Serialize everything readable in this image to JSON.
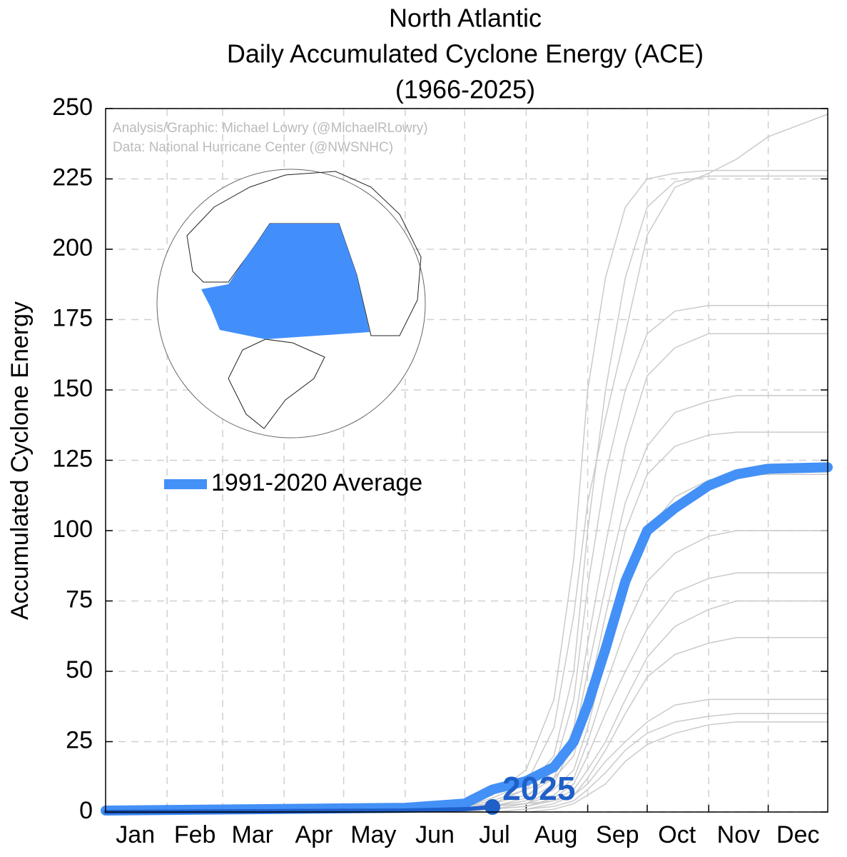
{
  "chart_data": {
    "type": "line",
    "title": [
      "North Atlantic",
      "Daily Accumulated Cyclone Energy (ACE)",
      "(1966-2025)"
    ],
    "ylabel": "Accumulated Cyclone Energy",
    "credits": [
      "Analysis/Graphic: Michael Lowry (@MichaelRLowry)",
      "Data: National Hurricane Center (@NWSNHC)"
    ],
    "x": [
      1,
      152,
      182,
      196,
      213,
      227,
      237,
      244,
      253,
      263,
      274,
      288,
      305,
      319,
      335,
      365
    ],
    "xlim": [
      1,
      365
    ],
    "xgrid": [
      32,
      60,
      91,
      121,
      152,
      182,
      213,
      244,
      274,
      305,
      335
    ],
    "xticks": [
      {
        "value": 16,
        "label": "Jan"
      },
      {
        "value": 46,
        "label": "Feb"
      },
      {
        "value": 75,
        "label": "Mar"
      },
      {
        "value": 106,
        "label": "Apr"
      },
      {
        "value": 136,
        "label": "May"
      },
      {
        "value": 167,
        "label": "Jun"
      },
      {
        "value": 197,
        "label": "Jul"
      },
      {
        "value": 228,
        "label": "Aug"
      },
      {
        "value": 259,
        "label": "Sep"
      },
      {
        "value": 289,
        "label": "Oct"
      },
      {
        "value": 320,
        "label": "Nov"
      },
      {
        "value": 350,
        "label": "Dec"
      }
    ],
    "ylim": [
      0,
      250
    ],
    "yticks": [
      0,
      25,
      50,
      75,
      100,
      125,
      150,
      175,
      200,
      225,
      250
    ],
    "grid": true,
    "legend": "upper left",
    "series": [
      {
        "color": "#cacaca",
        "values": [
          0,
          0,
          2,
          5,
          10,
          30,
          70,
          110,
          140,
          170,
          205,
          222,
          227,
          232,
          240,
          248
        ]
      },
      {
        "color": "#cacaca",
        "values": [
          0,
          1,
          3,
          6,
          15,
          40,
          90,
          150,
          190,
          215,
          225,
          227,
          228,
          228,
          228,
          228
        ]
      },
      {
        "color": "#cacaca",
        "values": [
          0,
          0,
          1,
          3,
          8,
          20,
          50,
          100,
          150,
          190,
          215,
          224,
          226,
          226,
          226,
          226
        ]
      },
      {
        "color": "#cacaca",
        "values": [
          0,
          0,
          0,
          2,
          5,
          15,
          40,
          80,
          120,
          150,
          170,
          178,
          180,
          180,
          180,
          180
        ]
      },
      {
        "color": "#cacaca",
        "values": [
          0,
          0,
          2,
          4,
          8,
          12,
          30,
          60,
          95,
          130,
          155,
          165,
          170,
          170,
          170,
          170
        ]
      },
      {
        "color": "#cacaca",
        "values": [
          0,
          0,
          1,
          2,
          4,
          10,
          25,
          50,
          80,
          110,
          130,
          142,
          146,
          148,
          148,
          148
        ]
      },
      {
        "color": "#cacaca",
        "values": [
          0,
          1,
          2,
          3,
          6,
          12,
          20,
          40,
          70,
          100,
          120,
          130,
          134,
          135,
          135,
          135
        ]
      },
      {
        "color": "#cacaca",
        "values": [
          0,
          0,
          0,
          1,
          3,
          8,
          15,
          30,
          55,
          80,
          100,
          112,
          118,
          120,
          120,
          120
        ]
      },
      {
        "color": "#cacaca",
        "values": [
          0,
          0,
          1,
          2,
          3,
          6,
          12,
          25,
          45,
          65,
          82,
          92,
          98,
          100,
          100,
          100
        ]
      },
      {
        "color": "#cacaca",
        "values": [
          0,
          0,
          0,
          1,
          2,
          5,
          10,
          20,
          35,
          50,
          65,
          78,
          83,
          85,
          85,
          85
        ]
      },
      {
        "color": "#cacaca",
        "values": [
          0,
          0,
          1,
          2,
          3,
          4,
          8,
          15,
          25,
          40,
          55,
          66,
          72,
          75,
          75,
          75
        ]
      },
      {
        "color": "#cacaca",
        "values": [
          0,
          0,
          0,
          0,
          1,
          3,
          6,
          12,
          22,
          35,
          48,
          56,
          60,
          62,
          62,
          62
        ]
      },
      {
        "color": "#cacaca",
        "values": [
          0,
          0,
          0,
          1,
          2,
          4,
          6,
          10,
          18,
          25,
          32,
          38,
          40,
          40,
          40,
          40
        ]
      },
      {
        "color": "#cacaca",
        "values": [
          0,
          0,
          0,
          0,
          1,
          2,
          4,
          8,
          14,
          22,
          28,
          32,
          34,
          35,
          35,
          35
        ]
      },
      {
        "color": "#cacaca",
        "values": [
          0,
          0,
          0,
          0,
          0,
          1,
          3,
          6,
          10,
          18,
          24,
          28,
          31,
          32,
          32,
          32
        ]
      },
      {
        "name": "1991-2020 Average",
        "color": "#4390f7",
        "width": 14,
        "values": [
          0.5,
          1.5,
          3,
          8,
          11,
          16,
          25,
          38,
          58,
          82,
          100,
          108,
          116,
          120,
          122,
          122.5
        ]
      },
      {
        "name": "2025",
        "color": "#1f5fc8",
        "width": 6,
        "label_at_end": true,
        "values": [
          0,
          0.5,
          1,
          1.8,
          null,
          null,
          null,
          null,
          null,
          null,
          null,
          null,
          null,
          null,
          null,
          null
        ]
      }
    ]
  }
}
